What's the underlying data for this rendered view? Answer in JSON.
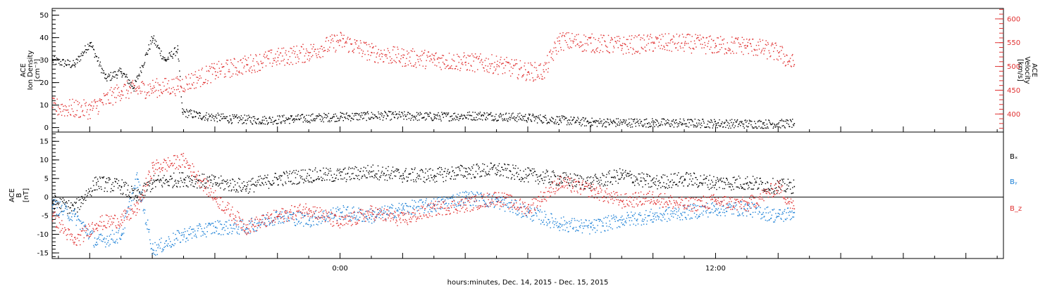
{
  "xlabel": "hours:minutes, Dec. 14, 2015 - Dec. 15, 2015",
  "x_ticks": [
    {
      "hours": 0,
      "label": "0:00"
    },
    {
      "hours": 12,
      "label": "12:00"
    }
  ],
  "x_range_hours": [
    -9.2,
    21.2
  ],
  "colors": {
    "black": "#000000",
    "red": "#e03030",
    "blue": "#1a7fd6"
  },
  "chart_data": [
    {
      "type": "scatter",
      "panel": "top",
      "left_axis": {
        "label_lines": [
          "ACE",
          "Ion Density",
          "[cm⁻³]"
        ],
        "ticks": [
          0,
          10,
          20,
          30,
          40,
          50
        ],
        "ylim": [
          -2,
          53
        ]
      },
      "right_axis": {
        "label_lines": [
          "ACE",
          "Velocity",
          "[km/s]"
        ],
        "ticks": [
          400,
          450,
          500,
          550,
          600
        ],
        "ylim": [
          362,
          622
        ]
      },
      "series": [
        {
          "color": "black",
          "axis": "left",
          "x": [
            -9.2,
            -8.5,
            -8.0,
            -7.5,
            -7.0,
            -6.6,
            -6.0,
            -5.6,
            -5.2,
            -5.05,
            -4.5,
            -3.5,
            -2.5,
            -1.5,
            0,
            1.5,
            3.0,
            4.5,
            6.0,
            7.0,
            8.0,
            10.0,
            12.0,
            13.5,
            14.5
          ],
          "y": [
            30,
            28,
            38,
            22,
            25,
            18,
            40,
            30,
            35,
            7,
            5.5,
            4,
            3.5,
            4,
            5,
            5.5,
            5,
            5.5,
            4.5,
            3.5,
            2.5,
            2.3,
            2.0,
            1.8,
            2.0
          ]
        },
        {
          "color": "red",
          "axis": "right",
          "x": [
            -9.2,
            -8.0,
            -7.0,
            -6.0,
            -5.2,
            -4.0,
            -3.0,
            -2.0,
            -1.0,
            0,
            1.0,
            2.0,
            3.0,
            4.0,
            5.0,
            6.0,
            6.5,
            7.0,
            8.0,
            9.0,
            10.0,
            11.0,
            12.0,
            13.0,
            14.0,
            14.5
          ],
          "y": [
            415,
            410,
            450,
            455,
            460,
            490,
            505,
            520,
            530,
            555,
            530,
            520,
            515,
            510,
            505,
            490,
            490,
            555,
            550,
            545,
            550,
            550,
            545,
            545,
            530,
            505
          ]
        }
      ]
    },
    {
      "type": "scatter",
      "panel": "bottom",
      "left_axis": {
        "label_lines": [
          "ACE",
          "B",
          "[nT]"
        ],
        "ticks": [
          -15,
          -10,
          -5,
          0,
          5,
          10,
          15
        ],
        "ylim": [
          -16.5,
          17.5
        ]
      },
      "zero_line": true,
      "legend": [
        "Bₓ",
        "Bᵧ",
        "B_z"
      ],
      "legend_position": "right",
      "series": [
        {
          "name": "Bₓ",
          "color": "black",
          "x": [
            -9.2,
            -8.5,
            -7.8,
            -7.0,
            -6.5,
            -6.0,
            -5.0,
            -4.0,
            -3.0,
            -2.0,
            -1.0,
            0,
            1.0,
            2.0,
            3.0,
            4.0,
            5.0,
            6.0,
            7.0,
            8.0,
            9.0,
            10.0,
            11.0,
            12.0,
            13.0,
            14.0,
            14.5
          ],
          "y": [
            -1,
            -3,
            4,
            3,
            0,
            4,
            5,
            4,
            3,
            5,
            6,
            6,
            7,
            6,
            6,
            7,
            7.5,
            6,
            5,
            4,
            6,
            4,
            5,
            4,
            4,
            3,
            3
          ]
        },
        {
          "name": "Bᵧ",
          "color": "blue",
          "x": [
            -9.2,
            -8.5,
            -7.8,
            -7.0,
            -6.5,
            -6.0,
            -5.0,
            -4.0,
            -3.0,
            -2.0,
            -1.0,
            0,
            1.0,
            2.0,
            3.0,
            4.0,
            5.0,
            6.0,
            7.0,
            8.0,
            9.0,
            10.0,
            11.0,
            12.0,
            13.0,
            14.0,
            14.5
          ],
          "y": [
            -2,
            -5,
            -12,
            -10,
            5,
            -14,
            -10,
            -8,
            -8,
            -5,
            -6,
            -4,
            -5,
            -3,
            -2,
            0,
            -1,
            -4,
            -7,
            -8,
            -6,
            -5,
            -4,
            -3,
            -3,
            -5,
            -4
          ]
        },
        {
          "name": "B_z",
          "color": "red",
          "x": [
            -9.2,
            -8.5,
            -7.8,
            -7.0,
            -6.5,
            -6.0,
            -5.0,
            -4.0,
            -3.0,
            -2.0,
            -1.0,
            0,
            1.0,
            2.0,
            3.0,
            4.0,
            5.0,
            6.0,
            7.0,
            8.0,
            9.0,
            10.0,
            11.0,
            12.0,
            13.0,
            14.0,
            14.5
          ],
          "y": [
            -5,
            -12,
            -7,
            -6,
            -3,
            8,
            10,
            0,
            -8,
            -5,
            -3,
            -7,
            -4,
            -6,
            -3,
            -2,
            0,
            -3,
            4,
            2,
            -1,
            0,
            -2,
            -1,
            -2,
            3,
            -3
          ]
        }
      ]
    }
  ]
}
